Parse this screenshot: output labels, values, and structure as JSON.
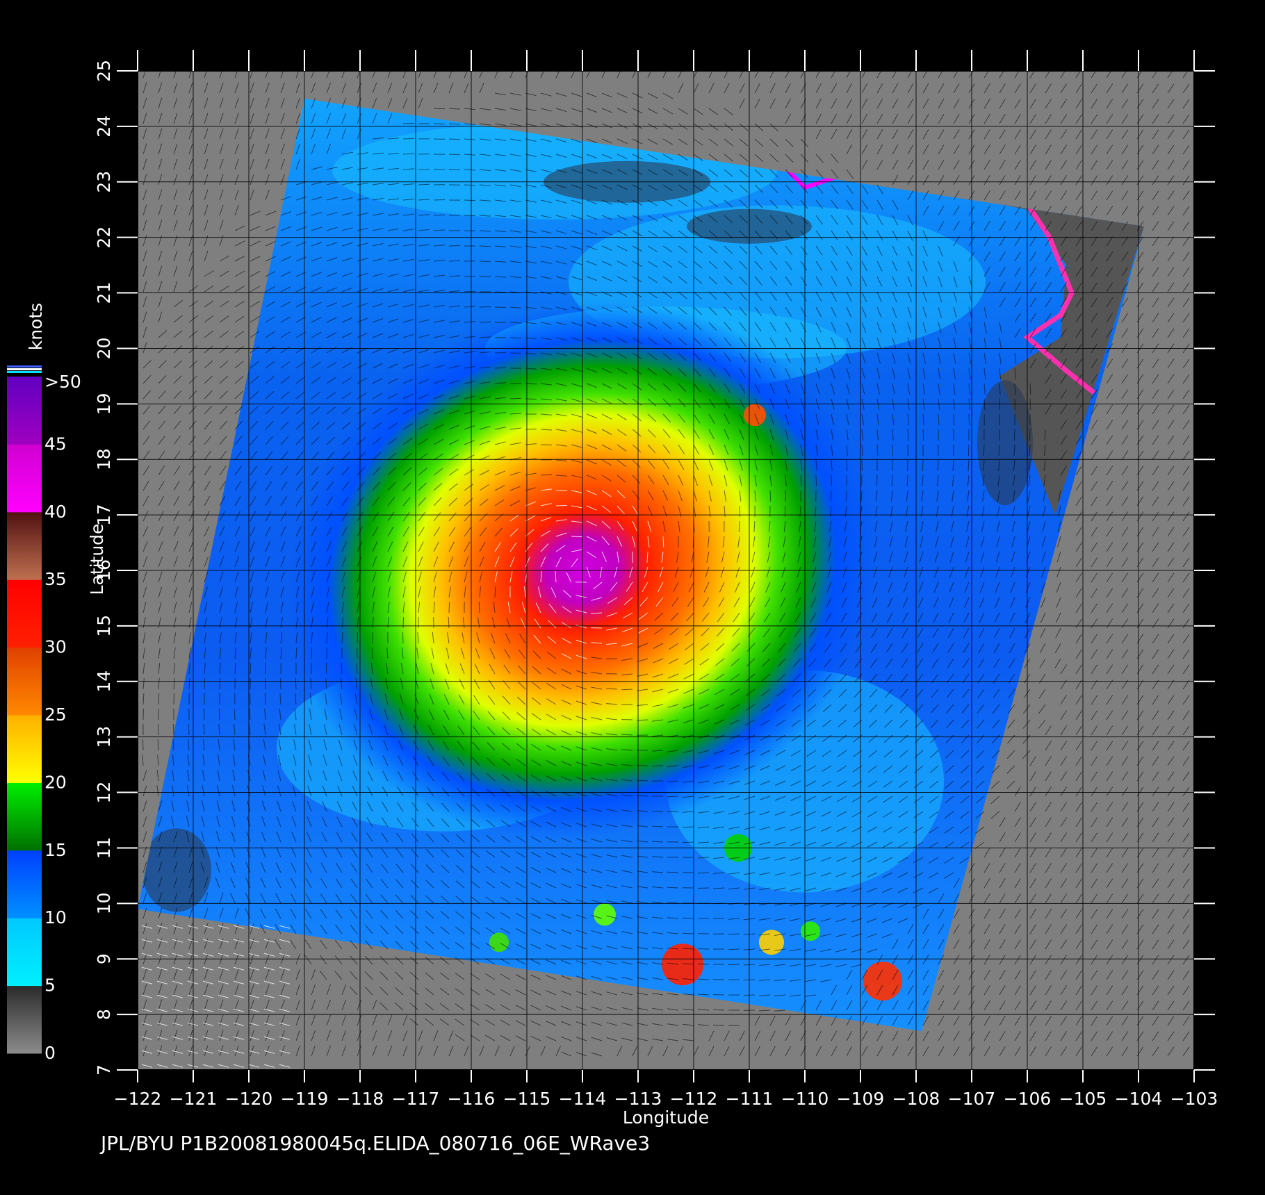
{
  "map": {
    "type": "wind-speed-swath",
    "axes": {
      "xlabel": "Longitude",
      "ylabel": "Latitude",
      "x_range": [
        -122,
        -103
      ],
      "y_range": [
        7,
        25
      ],
      "x_ticks": [
        "−122",
        "−121",
        "−120",
        "−119",
        "−118",
        "−117",
        "−116",
        "−115",
        "−114",
        "−113",
        "−112",
        "−111",
        "−110",
        "−109",
        "−108",
        "−107",
        "−106",
        "−105",
        "−104",
        "−103"
      ],
      "y_ticks": [
        "7",
        "8",
        "9",
        "10",
        "11",
        "12",
        "13",
        "14",
        "15",
        "16",
        "17",
        "18",
        "19",
        "20",
        "21",
        "22",
        "23",
        "24",
        "25"
      ],
      "grid": true
    },
    "storm": {
      "center_lon": -114.0,
      "center_lat": 16.0
    },
    "swath_corners_lonlat": [
      [
        -119.0,
        24.5
      ],
      [
        -103.9,
        22.2
      ],
      [
        -107.9,
        7.7
      ],
      [
        -122.0,
        9.9
      ]
    ],
    "colors": {
      "background": "#000000",
      "plot_bg": "#7f7f7f",
      "land": "#555555",
      "grid": "#000000"
    }
  },
  "colorbar": {
    "unit": "knots",
    "top_label": ">50",
    "labels": [
      "0",
      "5",
      "10",
      "15",
      "20",
      "25",
      "30",
      "35",
      "40",
      "45"
    ],
    "bands": [
      {
        "from": 0,
        "to": 5,
        "colors": [
          "#8c8c8c",
          "#2a2a2a"
        ]
      },
      {
        "from": 5,
        "to": 10,
        "colors": [
          "#00f0ff",
          "#00c8ff"
        ]
      },
      {
        "from": 10,
        "to": 15,
        "colors": [
          "#0090ff",
          "#0040ff"
        ]
      },
      {
        "from": 15,
        "to": 20,
        "colors": [
          "#007000",
          "#00f000"
        ]
      },
      {
        "from": 20,
        "to": 25,
        "colors": [
          "#ffff00",
          "#ffb000"
        ]
      },
      {
        "from": 25,
        "to": 30,
        "colors": [
          "#ff8800",
          "#e04000"
        ]
      },
      {
        "from": 30,
        "to": 35,
        "colors": [
          "#ff2000",
          "#ff0000"
        ]
      },
      {
        "from": 35,
        "to": 40,
        "colors": [
          "#c07050",
          "#501010"
        ]
      },
      {
        "from": 40,
        "to": 45,
        "colors": [
          "#ff00ff",
          "#d000d0"
        ]
      },
      {
        "from": 45,
        "to": 50,
        "colors": [
          "#a000c0",
          "#6000c0"
        ]
      }
    ]
  },
  "footer": {
    "text": "JPL/BYU  P1B20081980045q.ELIDA_080716_06E_WRave3"
  }
}
